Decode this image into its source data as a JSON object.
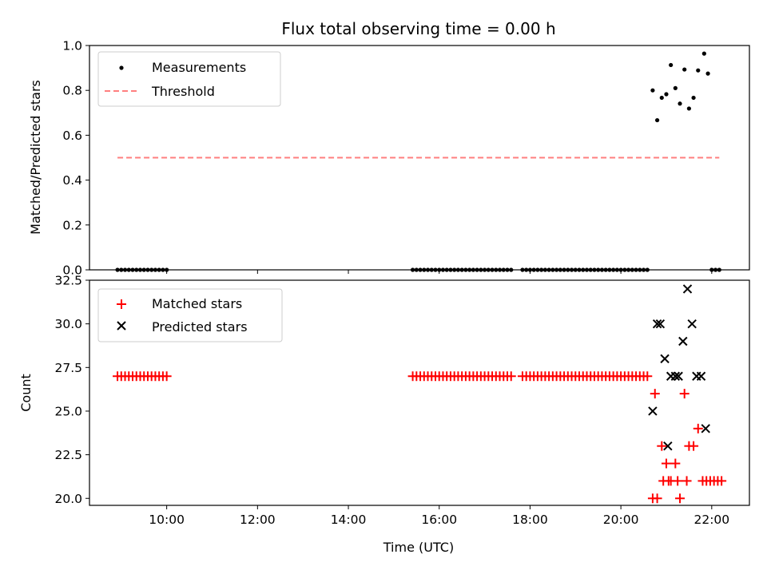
{
  "chart_data": {
    "title": "Flux total observing time = 0.00 h",
    "xlabel": "Time (UTC)",
    "x_ticks": [
      "10:00",
      "12:00",
      "14:00",
      "16:00",
      "18:00",
      "20:00",
      "22:00"
    ],
    "panels": [
      {
        "type": "scatter",
        "ylabel": "Matched/Predicted stars",
        "ylim": [
          0.0,
          1.0
        ],
        "y_ticks": [
          "0.0",
          "0.2",
          "0.4",
          "0.6",
          "0.8",
          "1.0"
        ],
        "legend_position": "top-left",
        "series": [
          {
            "name": "Measurements",
            "marker": "dot",
            "color": "#000000",
            "x": [
              "08:55",
              "09:00",
              "09:05",
              "09:10",
              "09:15",
              "09:20",
              "09:25",
              "09:30",
              "09:35",
              "09:40",
              "09:45",
              "09:50",
              "09:55",
              "10:00",
              "15:25",
              "15:30",
              "15:35",
              "15:40",
              "15:45",
              "15:50",
              "15:55",
              "16:00",
              "16:05",
              "16:10",
              "16:15",
              "16:20",
              "16:25",
              "16:30",
              "16:35",
              "16:40",
              "16:45",
              "16:50",
              "16:55",
              "17:00",
              "17:05",
              "17:10",
              "17:15",
              "17:20",
              "17:25",
              "17:30",
              "17:35",
              "17:50",
              "17:55",
              "18:00",
              "18:05",
              "18:10",
              "18:15",
              "18:20",
              "18:25",
              "18:30",
              "18:35",
              "18:40",
              "18:45",
              "18:50",
              "18:55",
              "19:00",
              "19:05",
              "19:10",
              "19:15",
              "19:20",
              "19:25",
              "19:30",
              "19:35",
              "19:40",
              "19:45",
              "19:50",
              "19:55",
              "20:00",
              "20:05",
              "20:10",
              "20:15",
              "20:20",
              "20:25",
              "20:30",
              "20:35",
              "20:42",
              "20:48",
              "20:54",
              "21:00",
              "21:06",
              "21:12",
              "21:18",
              "21:24",
              "21:30",
              "21:36",
              "21:42",
              "21:50",
              "21:55",
              "22:00",
              "22:05",
              "22:10"
            ],
            "y": [
              0,
              0,
              0,
              0,
              0,
              0,
              0,
              0,
              0,
              0,
              0,
              0,
              0,
              0,
              0,
              0,
              0,
              0,
              0,
              0,
              0,
              0,
              0,
              0,
              0,
              0,
              0,
              0,
              0,
              0,
              0,
              0,
              0,
              0,
              0,
              0,
              0,
              0,
              0,
              0,
              0,
              0,
              0,
              0,
              0,
              0,
              0,
              0,
              0,
              0,
              0,
              0,
              0,
              0,
              0,
              0,
              0,
              0,
              0,
              0,
              0,
              0,
              0,
              0,
              0,
              0,
              0,
              0,
              0,
              0,
              0,
              0,
              0,
              0,
              0,
              0.8,
              0.667,
              0.767,
              0.783,
              0.913,
              0.81,
              0.741,
              0.893,
              0.719,
              0.767,
              0.889,
              0.964,
              0.875,
              0,
              0,
              0
            ]
          },
          {
            "name": "Threshold",
            "marker": "dashed-line",
            "color": "#ff7f7f",
            "x": [
              "08:55",
              "22:10"
            ],
            "y": [
              0.5,
              0.5
            ]
          }
        ]
      },
      {
        "type": "scatter",
        "ylabel": "Count",
        "ylim": [
          19.6,
          32.5
        ],
        "y_ticks": [
          "20.0",
          "22.5",
          "25.0",
          "27.5",
          "30.0",
          "32.5"
        ],
        "legend_position": "top-left",
        "series": [
          {
            "name": "Matched stars",
            "marker": "plus",
            "color": "#ff0000",
            "x": [
              "08:55",
              "09:00",
              "09:05",
              "09:10",
              "09:15",
              "09:20",
              "09:25",
              "09:30",
              "09:35",
              "09:40",
              "09:45",
              "09:50",
              "09:55",
              "10:00",
              "15:25",
              "15:30",
              "15:35",
              "15:40",
              "15:45",
              "15:50",
              "15:55",
              "16:00",
              "16:05",
              "16:10",
              "16:15",
              "16:20",
              "16:25",
              "16:30",
              "16:35",
              "16:40",
              "16:45",
              "16:50",
              "16:55",
              "17:00",
              "17:05",
              "17:10",
              "17:15",
              "17:20",
              "17:25",
              "17:30",
              "17:35",
              "17:50",
              "17:55",
              "18:00",
              "18:05",
              "18:10",
              "18:15",
              "18:20",
              "18:25",
              "18:30",
              "18:35",
              "18:40",
              "18:45",
              "18:50",
              "18:55",
              "19:00",
              "19:05",
              "19:10",
              "19:15",
              "19:20",
              "19:25",
              "19:30",
              "19:35",
              "19:40",
              "19:45",
              "19:50",
              "19:55",
              "20:00",
              "20:05",
              "20:10",
              "20:15",
              "20:20",
              "20:25",
              "20:30",
              "20:35",
              "20:42",
              "20:48",
              "20:54",
              "21:00",
              "21:06",
              "21:12",
              "21:18",
              "21:24",
              "21:30",
              "21:36",
              "21:42",
              "20:45",
              "20:56",
              "21:03",
              "21:15",
              "21:27",
              "21:48",
              "21:53",
              "21:58",
              "22:03",
              "22:08",
              "22:13"
            ],
            "y": [
              27,
              27,
              27,
              27,
              27,
              27,
              27,
              27,
              27,
              27,
              27,
              27,
              27,
              27,
              27,
              27,
              27,
              27,
              27,
              27,
              27,
              27,
              27,
              27,
              27,
              27,
              27,
              27,
              27,
              27,
              27,
              27,
              27,
              27,
              27,
              27,
              27,
              27,
              27,
              27,
              27,
              27,
              27,
              27,
              27,
              27,
              27,
              27,
              27,
              27,
              27,
              27,
              27,
              27,
              27,
              27,
              27,
              27,
              27,
              27,
              27,
              27,
              27,
              27,
              27,
              27,
              27,
              27,
              27,
              27,
              27,
              27,
              27,
              27,
              27,
              20,
              20,
              23,
              22,
              21,
              22,
              20,
              26,
              23,
              23,
              24,
              26,
              21,
              21,
              21,
              21,
              21,
              21,
              21,
              21,
              21,
              21
            ]
          },
          {
            "name": "Predicted stars",
            "marker": "x",
            "color": "#000000",
            "x": [
              "20:42",
              "20:48",
              "20:52",
              "20:58",
              "21:02",
              "21:06",
              "21:12",
              "21:16",
              "21:22",
              "21:28",
              "21:34",
              "21:40",
              "21:46",
              "21:52"
            ],
            "y": [
              25,
              30,
              30,
              28,
              23,
              27,
              27,
              27,
              29,
              32,
              30,
              27,
              27,
              24
            ]
          }
        ]
      }
    ]
  }
}
